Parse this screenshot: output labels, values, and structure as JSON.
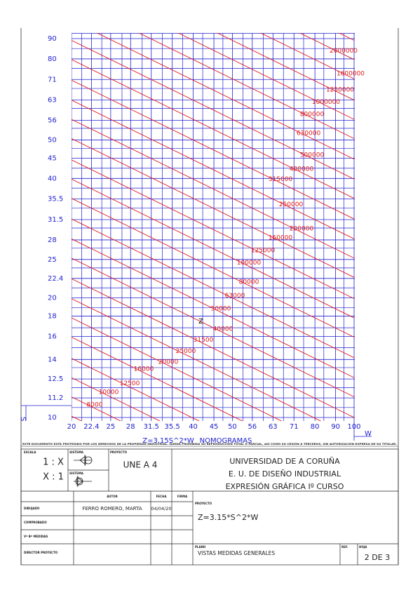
{
  "nomogram": {
    "s_ticks": [
      90,
      80,
      71,
      63,
      56,
      50,
      45,
      40,
      35.5,
      31.5,
      28,
      25,
      22.4,
      20,
      18,
      16,
      14,
      12.5,
      11.2,
      10
    ],
    "w_ticks": [
      20,
      22.4,
      25,
      28,
      31.5,
      35.5,
      40,
      45,
      50,
      56,
      63,
      71,
      80,
      90,
      100
    ],
    "coefficient": 3.15,
    "z_lines": [
      8000,
      10000,
      12500,
      16000,
      20000,
      25000,
      31500,
      40000,
      50000,
      63000,
      80000,
      100000,
      125000,
      160000,
      200000,
      250000,
      315000,
      400000,
      500000,
      630000,
      800000,
      1000000,
      1250000,
      1600000,
      2000000
    ],
    "s_label": "S",
    "w_label": "W",
    "z_label": "Z",
    "formula": "Z=3.15S^2*W",
    "title": "NOMOGRAMAS",
    "notice": "ESTE DOCUMENTO ESTÁ PROTEGIDO POR LOS DERECHOS DE LA PROPIEDAD INDUSTRIAL. QUEDA PROHIBIDA SU REPRODUCCIÓN TOTAL O PARCIAL, ASÍ COMO SU CESIÓN A TERCEROS, SIN AUTORIZACIÓN EXPRESA DE SU TITULAR."
  },
  "title_block": {
    "escala_label": "ESCALA",
    "escala_1": "1 : X",
    "escala_2": "X : 1",
    "sistema_label_1": "SISTEMA",
    "sistema_label_2": "SISTEMA",
    "norma_label": "PROYECTO",
    "norma": "UNE A 4",
    "institution": "UNIVERSIDAD DE A CORUÑA",
    "school": "E. U. DE DISEÑO INDUSTRIAL",
    "course": "EXPRESIÓN GRÁFICA Iº CURSO",
    "autor_header": "AUTOR",
    "fecha_header": "FECHA",
    "firma_header": "FIRMA",
    "rows": [
      {
        "label": "DIBUJADO",
        "autor": "FERRO ROMERO, MARTA",
        "fecha": "04/04/20"
      },
      {
        "label": "COMPROBADO"
      },
      {
        "label": "Vº Bº MEDIDAS"
      },
      {
        "label": "DIRECTOR PROYECTO"
      }
    ],
    "proyecto_label": "PROYECTO",
    "proyecto": "Z=3.15*S^2*W",
    "plano_label": "PLANO",
    "plano": "VISTAS MEDIDAS GENERALES",
    "ref_label": "REF.",
    "hoja_label": "HOJA",
    "hoja": "2 DE 3"
  }
}
